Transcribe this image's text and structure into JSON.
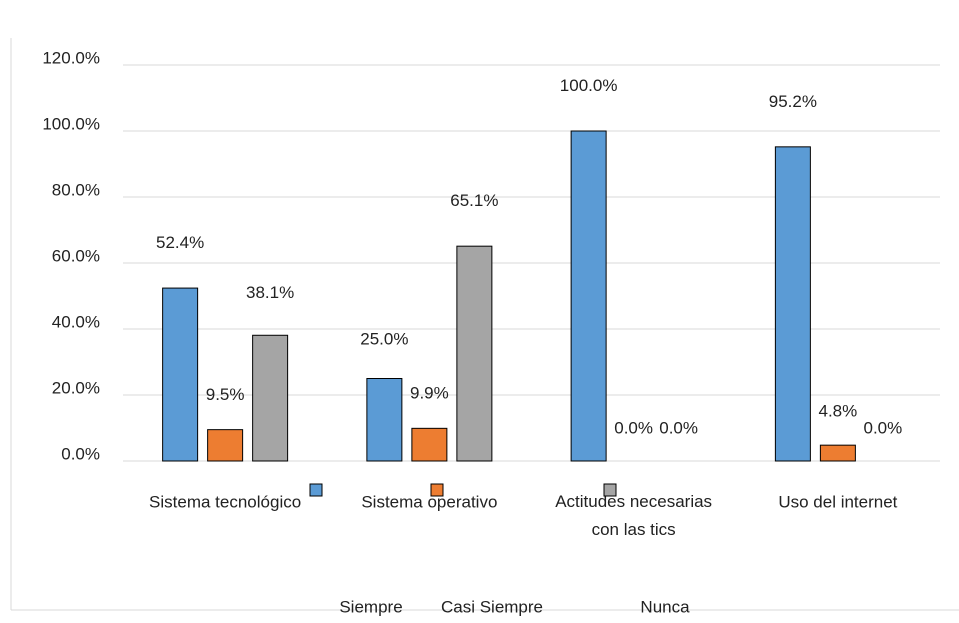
{
  "chart_data": {
    "type": "bar",
    "categories": [
      "Sistema tecnológico",
      "Sistema operativo",
      "Actitudes necesarias con las tics",
      "Uso del internet"
    ],
    "series": [
      {
        "name": "Siempre",
        "color": "#5b9bd5",
        "values": [
          52.4,
          25.0,
          100.0,
          95.2
        ],
        "value_labels": [
          "52.4%",
          "25.0%",
          "100.0%",
          "95.2%"
        ]
      },
      {
        "name": "Casi Siempre",
        "color": "#ed7d31",
        "values": [
          9.5,
          9.9,
          0.0,
          4.8
        ],
        "value_labels": [
          "9.5%",
          "9.9%",
          "0.0%",
          "4.8%"
        ]
      },
      {
        "name": "Nunca",
        "color": "#a5a5a5",
        "values": [
          38.1,
          65.1,
          0.0,
          0.0
        ],
        "value_labels": [
          "38.1%",
          "65.1%",
          "0.0%",
          "0.0%"
        ]
      }
    ],
    "ylim": [
      0,
      120
    ],
    "yticks": [
      {
        "value": 0,
        "label": "0.0%"
      },
      {
        "value": 20,
        "label": "20.0%"
      },
      {
        "value": 40,
        "label": "40.0%"
      },
      {
        "value": 60,
        "label": "60.0%"
      },
      {
        "value": 80,
        "label": "80.0%"
      },
      {
        "value": 100,
        "label": "100.0%"
      },
      {
        "value": 120,
        "label": "120.0%"
      }
    ],
    "grid": true,
    "legend": "bottom"
  }
}
